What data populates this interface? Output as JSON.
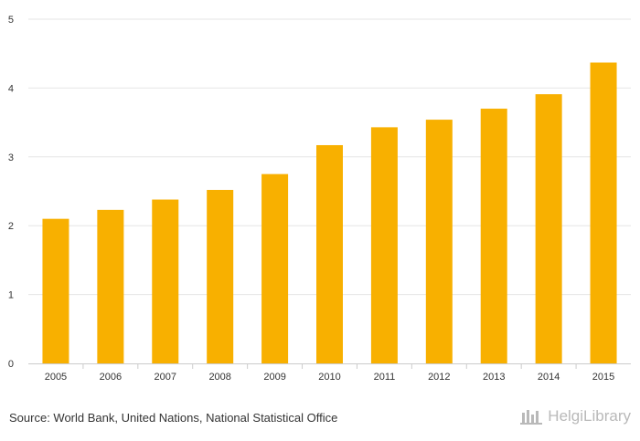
{
  "chart_data": {
    "type": "bar",
    "title": "",
    "xlabel": "",
    "ylabel": "",
    "categories": [
      "2005",
      "2006",
      "2007",
      "2008",
      "2009",
      "2010",
      "2011",
      "2012",
      "2013",
      "2014",
      "2015"
    ],
    "values": [
      2.1,
      2.23,
      2.38,
      2.52,
      2.75,
      3.17,
      3.43,
      3.54,
      3.7,
      3.91,
      4.37
    ],
    "ylim": [
      0,
      5
    ],
    "yticks": [
      "0",
      "1",
      "2",
      "3",
      "4",
      "5"
    ],
    "grid": true,
    "bar_color": "#f8b000"
  },
  "footer": {
    "source": "Source: World Bank, United Nations, National Statistical Office",
    "brand": "HelgiLibrary"
  }
}
